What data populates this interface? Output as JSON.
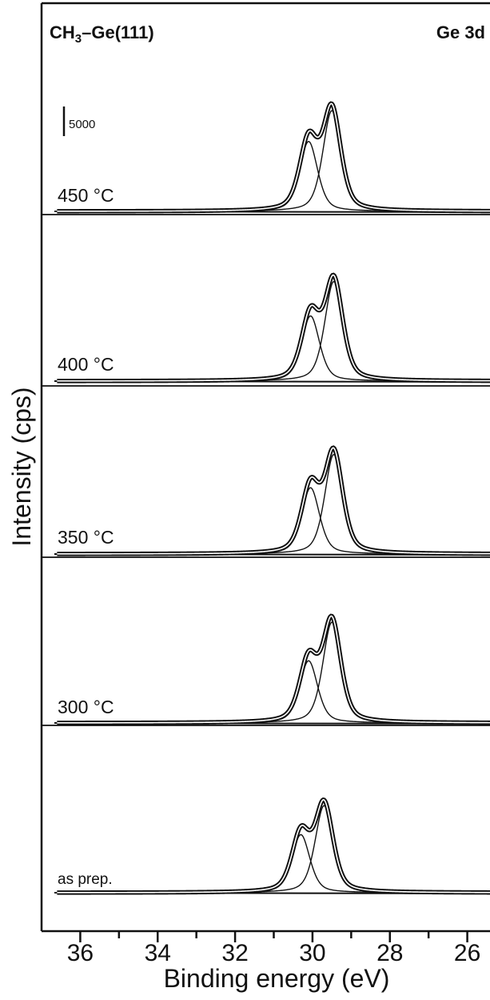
{
  "chart_data": {
    "type": "line",
    "title": "CH3–Ge(111)",
    "title_main": "CH",
    "title_sub": "3",
    "title_rest": "–Ge(111)",
    "region_label": "Ge 3d",
    "xlabel": "Binding energy (eV)",
    "ylabel": "Intensity (cps)",
    "xlim": [
      37,
      25
    ],
    "x_reversed": true,
    "x_ticks": [
      36,
      34,
      32,
      30,
      28,
      26
    ],
    "x_tick_labels": [
      "36",
      "34",
      "32",
      "30",
      "28",
      "26"
    ],
    "scale_bar": {
      "label": "5000",
      "value": 5000
    },
    "fwhm": 0.55,
    "series": [
      {
        "name": "450 °C",
        "peaks": [
          {
            "center": 30.1,
            "height": 11800
          },
          {
            "center": 29.5,
            "height": 17000
          }
        ]
      },
      {
        "name": "400 °C",
        "peaks": [
          {
            "center": 30.05,
            "height": 11000
          },
          {
            "center": 29.45,
            "height": 16800
          }
        ]
      },
      {
        "name": "350 °C",
        "peaks": [
          {
            "center": 30.05,
            "height": 11200
          },
          {
            "center": 29.45,
            "height": 16800
          }
        ]
      },
      {
        "name": "300 °C",
        "peaks": [
          {
            "center": 30.1,
            "height": 10500
          },
          {
            "center": 29.5,
            "height": 17000
          }
        ]
      },
      {
        "name": "as prep.",
        "peaks": [
          {
            "center": 30.3,
            "height": 9800
          },
          {
            "center": 29.7,
            "height": 14700
          }
        ]
      }
    ]
  }
}
